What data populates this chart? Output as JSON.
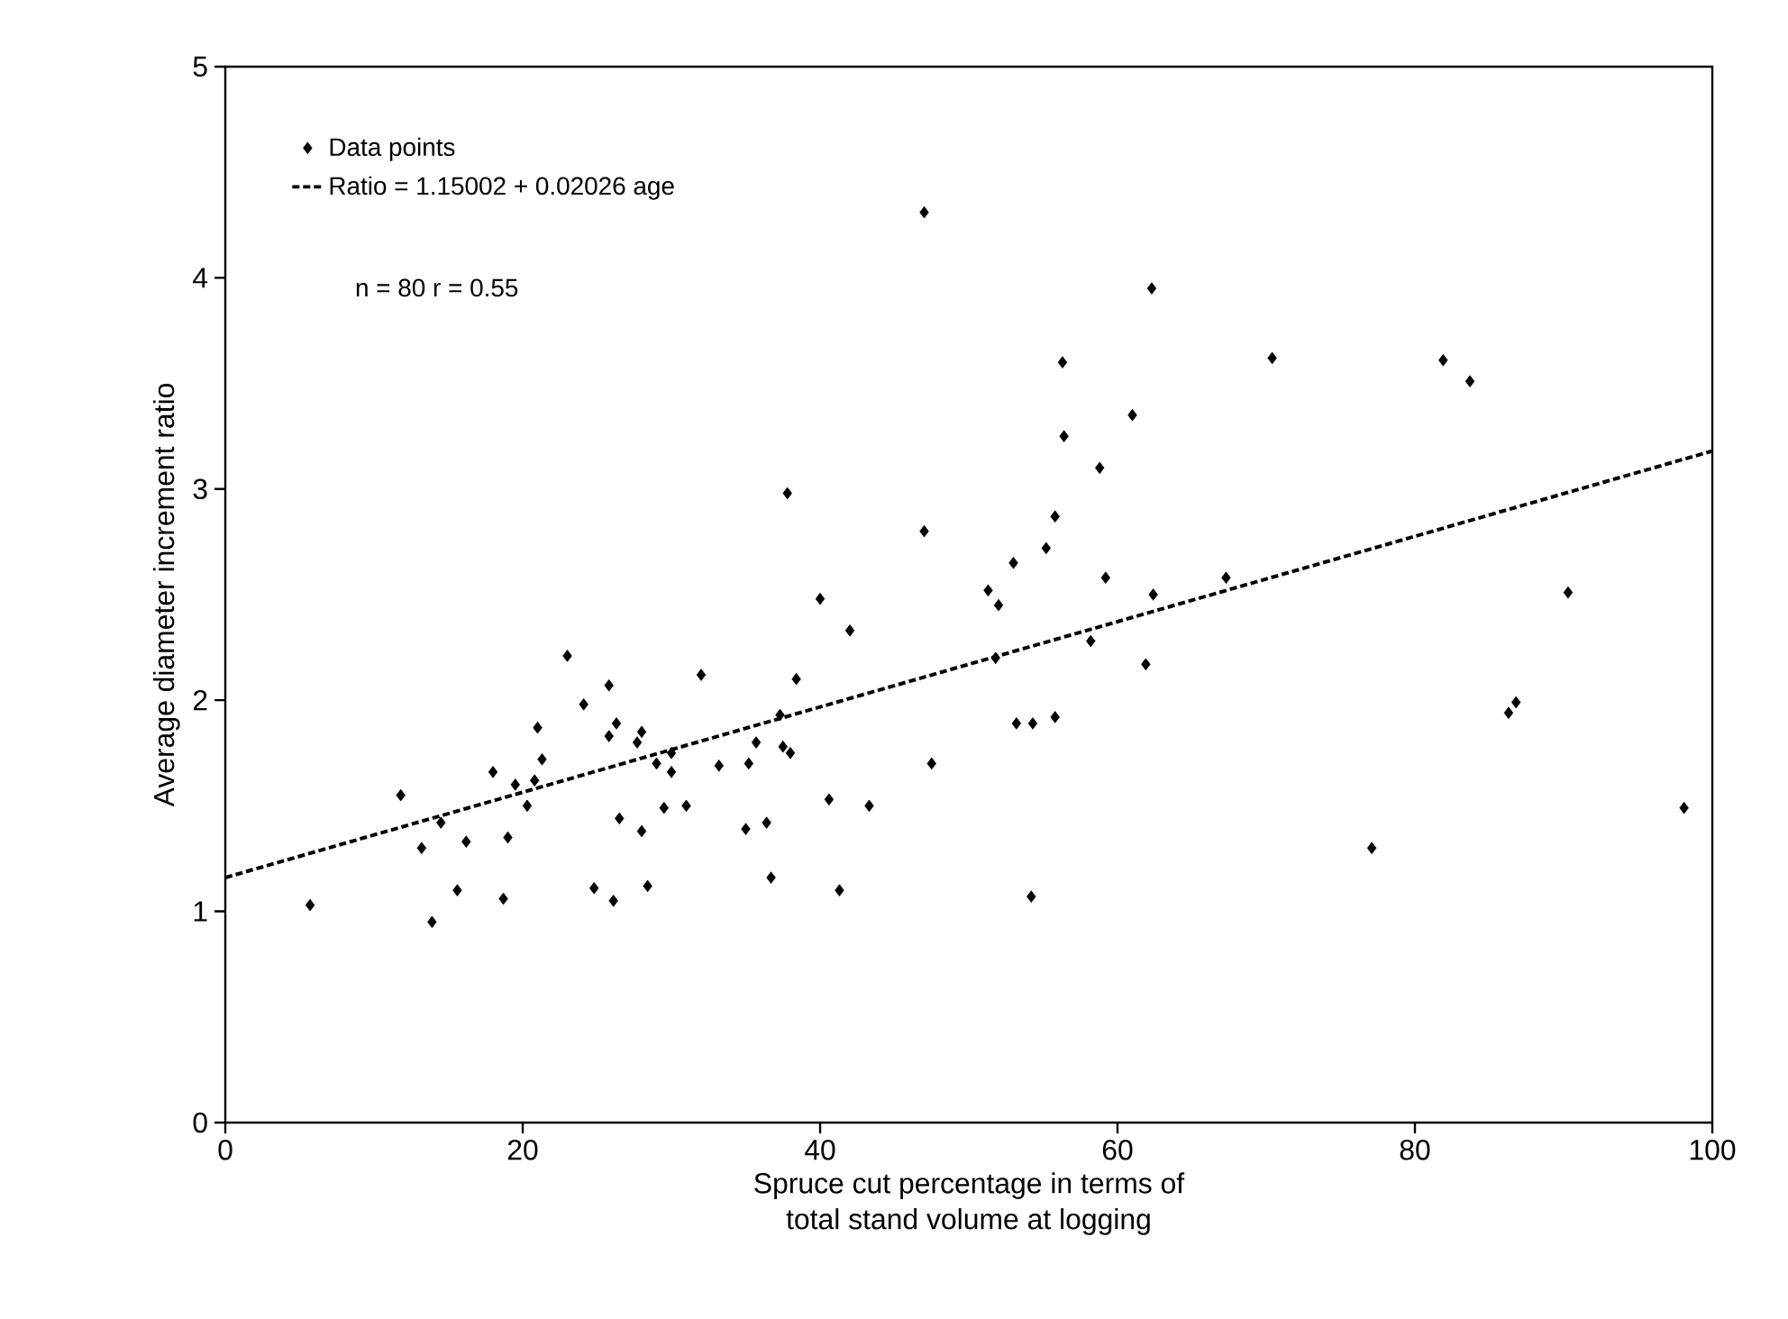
{
  "chart_data": {
    "type": "scatter",
    "xlabel": "Spruce cut percentage in terms of\ntotal stand volume at logging",
    "ylabel": "Average diameter increment ratio",
    "xlim": [
      0,
      100
    ],
    "ylim": [
      0,
      5
    ],
    "xticks": [
      0,
      20,
      40,
      60,
      80,
      100
    ],
    "yticks": [
      0,
      1,
      2,
      3,
      4,
      5
    ],
    "grid": false,
    "legend": "top left",
    "annotations": [
      "n = 80  r = 0.55"
    ],
    "series": [
      {
        "name": "Data points",
        "color": "#000000",
        "marker": "diamond",
        "x": [
          5.7,
          11.8,
          13.2,
          13.9,
          14.5,
          15.6,
          16.2,
          18.0,
          18.7,
          19.0,
          19.5,
          20.3,
          20.8,
          21.0,
          21.3,
          23.0,
          24.1,
          24.8,
          25.8,
          25.8,
          26.1,
          26.3,
          26.5,
          27.7,
          28.0,
          28.0,
          28.4,
          29.0,
          29.5,
          30.0,
          30.0,
          31.0,
          32.0,
          33.2,
          35.0,
          35.2,
          35.7,
          36.4,
          36.7,
          37.3,
          37.5,
          37.8,
          38.0,
          38.4,
          40.0,
          40.6,
          41.3,
          42.0,
          43.3,
          47.0,
          47.0,
          47.5,
          51.3,
          51.8,
          52.0,
          53.0,
          53.2,
          54.2,
          54.3,
          55.2,
          55.8,
          55.8,
          56.3,
          56.4,
          58.2,
          58.8,
          59.2,
          61.0,
          61.9,
          62.3,
          62.4,
          67.3,
          70.4,
          77.1,
          81.9,
          83.7,
          86.3,
          86.8,
          90.3,
          98.1
        ],
        "values": [
          1.03,
          1.55,
          1.3,
          0.95,
          1.42,
          1.1,
          1.33,
          1.66,
          1.06,
          1.35,
          1.6,
          1.5,
          1.62,
          1.87,
          1.72,
          2.21,
          1.98,
          1.11,
          1.83,
          2.07,
          1.05,
          1.89,
          1.44,
          1.8,
          1.38,
          1.85,
          1.12,
          1.7,
          1.49,
          1.66,
          1.75,
          1.5,
          2.12,
          1.69,
          1.39,
          1.7,
          1.8,
          1.42,
          1.16,
          1.93,
          1.78,
          2.98,
          1.75,
          2.1,
          2.48,
          1.53,
          1.1,
          2.33,
          1.5,
          4.31,
          2.8,
          1.7,
          2.52,
          2.2,
          2.45,
          2.65,
          1.89,
          1.07,
          1.89,
          2.72,
          1.92,
          2.87,
          3.6,
          3.25,
          2.28,
          3.1,
          2.58,
          3.35,
          2.17,
          3.95,
          2.5,
          2.58,
          3.62,
          1.3,
          3.61,
          3.51,
          1.94,
          1.99,
          2.51,
          1.49
        ]
      },
      {
        "name": "Ratio = 1.15002 + 0.02026 age",
        "type": "line",
        "color": "#000000",
        "line_style": "dashed",
        "marker": "none",
        "x": [
          0,
          100
        ],
        "values": [
          1.16,
          3.18
        ]
      }
    ]
  }
}
